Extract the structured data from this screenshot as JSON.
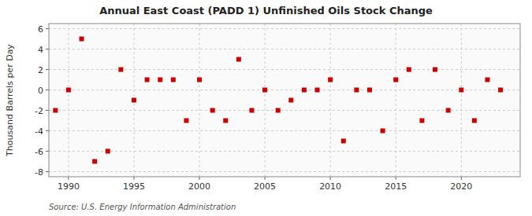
{
  "chart_data": {
    "type": "scatter",
    "title": "Annual East Coast (PADD 1) Unfinished Oils Stock Change",
    "ylabel": "Thousand Barrels per Day",
    "annotations": [
      "Source: U.S. Energy Information Administration"
    ],
    "color": "#cc0000",
    "marker": "square",
    "grid": true,
    "xlim": [
      1988.5,
      2024.5
    ],
    "ylim": [
      -8.5,
      6.5
    ],
    "xticks": [
      1990,
      1995,
      2000,
      2005,
      2010,
      2015,
      2020
    ],
    "yticks": [
      -8,
      -6,
      -4,
      -2,
      0,
      2,
      4,
      6
    ],
    "x": [
      1989,
      1990,
      1991,
      1992,
      1993,
      1994,
      1995,
      1996,
      1997,
      1998,
      1999,
      2000,
      2001,
      2002,
      2003,
      2004,
      2005,
      2006,
      2007,
      2008,
      2009,
      2010,
      2011,
      2012,
      2013,
      2014,
      2015,
      2016,
      2017,
      2018,
      2019,
      2020,
      2021,
      2022,
      2023
    ],
    "values": [
      -2,
      0,
      5,
      -7,
      -6,
      2,
      -1,
      1,
      1,
      1,
      -3,
      1,
      -2,
      -3,
      3,
      -2,
      0,
      -2,
      -1,
      0,
      0,
      1,
      -5,
      0,
      0,
      -4,
      1,
      2,
      -3,
      2,
      -2,
      0,
      -3,
      1,
      0
    ]
  }
}
